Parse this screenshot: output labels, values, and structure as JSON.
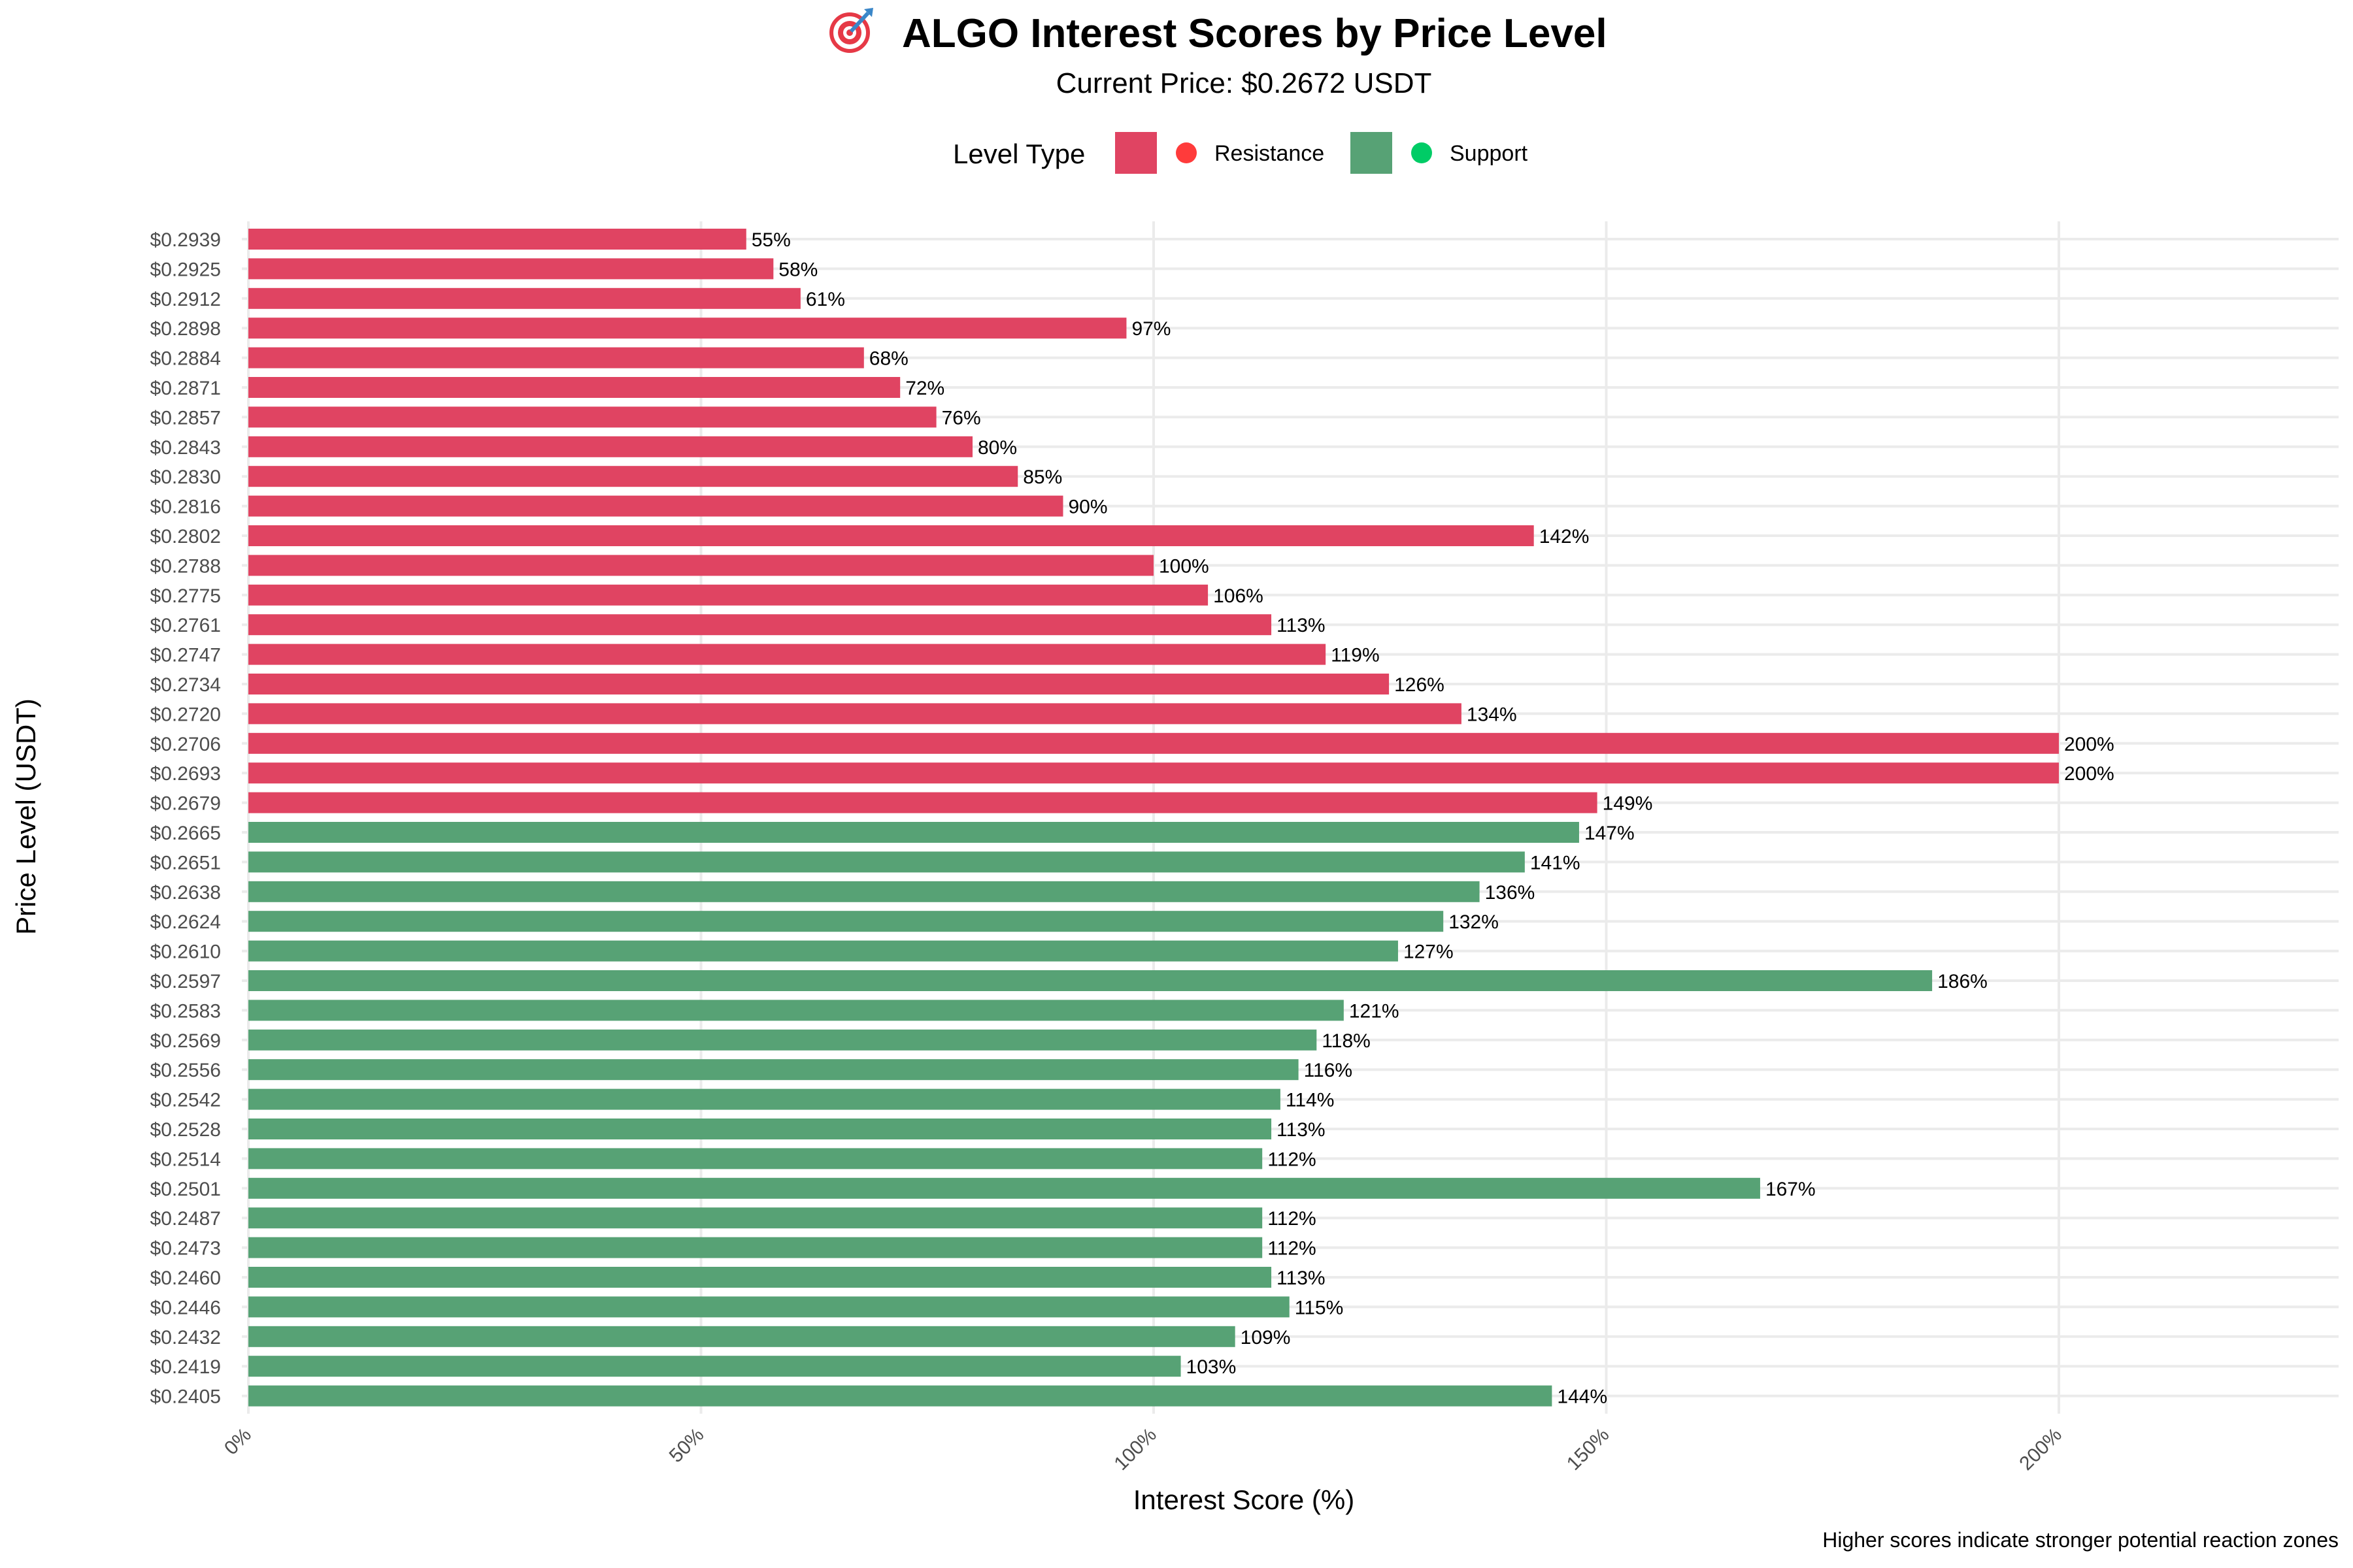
{
  "chart_data": {
    "type": "bar",
    "orientation": "horizontal",
    "title": "ALGO Interest Scores by Price Level",
    "title_icon": "target-icon",
    "subtitle": "Current Price: $0.2672 USDT",
    "xlabel": "Interest Score (%)",
    "ylabel": "Price Level (USDT)",
    "caption": "Higher scores indicate stronger potential reaction zones",
    "xlim": [
      0,
      230
    ],
    "x_ticks": [
      0,
      50,
      100,
      150,
      200
    ],
    "x_tick_labels": [
      "0%",
      "50%",
      "100%",
      "150%",
      "200%"
    ],
    "grid": true,
    "legend": {
      "title": "Level Type",
      "placement": "top",
      "entries": [
        {
          "name": "Resistance",
          "color": "#e04462",
          "dot_color": "#ff3b3b"
        },
        {
          "name": "Support",
          "color": "#57a275",
          "dot_color": "#00cc66"
        }
      ]
    },
    "categories": [
      "$0.2939",
      "$0.2925",
      "$0.2912",
      "$0.2898",
      "$0.2884",
      "$0.2871",
      "$0.2857",
      "$0.2843",
      "$0.2830",
      "$0.2816",
      "$0.2802",
      "$0.2788",
      "$0.2775",
      "$0.2761",
      "$0.2747",
      "$0.2734",
      "$0.2720",
      "$0.2706",
      "$0.2693",
      "$0.2679",
      "$0.2665",
      "$0.2651",
      "$0.2638",
      "$0.2624",
      "$0.2610",
      "$0.2597",
      "$0.2583",
      "$0.2569",
      "$0.2556",
      "$0.2542",
      "$0.2528",
      "$0.2514",
      "$0.2501",
      "$0.2487",
      "$0.2473",
      "$0.2460",
      "$0.2446",
      "$0.2432",
      "$0.2419",
      "$0.2405"
    ],
    "values": [
      55,
      58,
      61,
      97,
      68,
      72,
      76,
      80,
      85,
      90,
      142,
      100,
      106,
      113,
      119,
      126,
      134,
      200,
      200,
      149,
      147,
      141,
      136,
      132,
      127,
      186,
      121,
      118,
      116,
      114,
      113,
      112,
      167,
      112,
      112,
      113,
      115,
      109,
      103,
      144
    ],
    "value_labels": [
      "55%",
      "58%",
      "61%",
      "97%",
      "68%",
      "72%",
      "76%",
      "80%",
      "85%",
      "90%",
      "142%",
      "100%",
      "106%",
      "113%",
      "119%",
      "126%",
      "134%",
      "200%",
      "200%",
      "149%",
      "147%",
      "141%",
      "136%",
      "132%",
      "127%",
      "186%",
      "121%",
      "118%",
      "116%",
      "114%",
      "113%",
      "112%",
      "167%",
      "112%",
      "112%",
      "113%",
      "115%",
      "109%",
      "103%",
      "144%"
    ],
    "types": [
      "Resistance",
      "Resistance",
      "Resistance",
      "Resistance",
      "Resistance",
      "Resistance",
      "Resistance",
      "Resistance",
      "Resistance",
      "Resistance",
      "Resistance",
      "Resistance",
      "Resistance",
      "Resistance",
      "Resistance",
      "Resistance",
      "Resistance",
      "Resistance",
      "Resistance",
      "Resistance",
      "Support",
      "Support",
      "Support",
      "Support",
      "Support",
      "Support",
      "Support",
      "Support",
      "Support",
      "Support",
      "Support",
      "Support",
      "Support",
      "Support",
      "Support",
      "Support",
      "Support",
      "Support",
      "Support",
      "Support"
    ]
  }
}
